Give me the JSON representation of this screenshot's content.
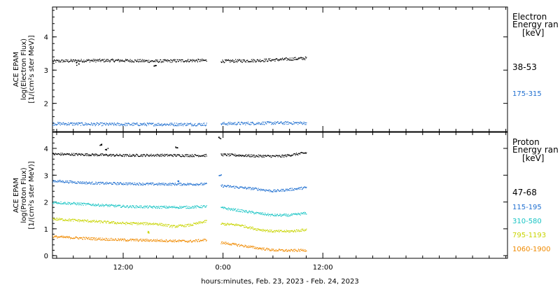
{
  "colors": {
    "background": "#ffffff",
    "axis": "#000000",
    "black": "#000000",
    "blue": "#1f6fd0",
    "cyan": "#17c4c4",
    "yellow": "#c8d400",
    "orange": "#f08a00"
  },
  "xlabel": "hours:minutes, Feb. 23, 2023 - Feb. 24, 2023",
  "chart_data": [
    {
      "type": "scatter",
      "panel": "electron",
      "ylabel_lines": [
        "ACE EPAM",
        "log(Electron Flux)",
        "[1/(cm²s ster MeV)]"
      ],
      "ylim": [
        1.15,
        4.9
      ],
      "xlim_hours": [
        3.5,
        58.2
      ],
      "yticks": [
        {
          "value": 2,
          "label": "2"
        },
        {
          "value": 3,
          "label": "3"
        },
        {
          "value": 4,
          "label": "4"
        }
      ],
      "xticks": [
        {
          "value": 12,
          "label": "12:00"
        },
        {
          "value": 24,
          "label": "0:00"
        },
        {
          "value": 36,
          "label": "12:00"
        }
      ],
      "data_gap_hours": [
        22.0,
        23.7
      ],
      "data_end_hours": 34.0,
      "legend_title_lines": [
        "Electron",
        "Energy ran"
      ],
      "legend_unit": "[keV]",
      "series": [
        {
          "name": "38-53",
          "color": "#000000",
          "points": [
            [
              3.5,
              3.28
            ],
            [
              8,
              3.3
            ],
            [
              12,
              3.3
            ],
            [
              16,
              3.28
            ],
            [
              20,
              3.3
            ],
            [
              22,
              3.3
            ],
            [
              24,
              3.28
            ],
            [
              28,
              3.3
            ],
            [
              31,
              3.33
            ],
            [
              34,
              3.37
            ]
          ],
          "spikes": [
            [
              6.5,
              3.2
            ],
            [
              15.8,
              3.15
            ]
          ]
        },
        {
          "name": "175-315",
          "color": "#1f6fd0",
          "points": [
            [
              3.5,
              1.4
            ],
            [
              10,
              1.38
            ],
            [
              16,
              1.38
            ],
            [
              22,
              1.38
            ],
            [
              24,
              1.4
            ],
            [
              30,
              1.42
            ],
            [
              34,
              1.42
            ]
          ],
          "spikes": []
        }
      ]
    },
    {
      "type": "scatter",
      "panel": "proton",
      "ylabel_lines": [
        "ACE EPAM",
        "log(Proton Flux)",
        "[1/(cm²s ster MeV)]"
      ],
      "ylim": [
        -0.1,
        4.6
      ],
      "xlim_hours": [
        3.5,
        58.2
      ],
      "yticks": [
        {
          "value": 0,
          "label": "0"
        },
        {
          "value": 1,
          "label": "1"
        },
        {
          "value": 2,
          "label": "2"
        },
        {
          "value": 3,
          "label": "3"
        },
        {
          "value": 4,
          "label": "4"
        }
      ],
      "xticks": [
        {
          "value": 12,
          "label": "12:00"
        },
        {
          "value": 24,
          "label": "0:00"
        },
        {
          "value": 36,
          "label": "12:00"
        }
      ],
      "data_gap_hours": [
        22.0,
        23.7
      ],
      "data_end_hours": 34.0,
      "legend_title_lines": [
        "Proton",
        "Energy ran"
      ],
      "legend_unit": "[keV]",
      "series": [
        {
          "name": "47-68",
          "color": "#000000",
          "points": [
            [
              3.5,
              3.8
            ],
            [
              8,
              3.78
            ],
            [
              12,
              3.75
            ],
            [
              16,
              3.76
            ],
            [
              20,
              3.75
            ],
            [
              22,
              3.75
            ],
            [
              23.7,
              3.78
            ],
            [
              28,
              3.73
            ],
            [
              31,
              3.72
            ],
            [
              34,
              3.85
            ]
          ],
          "spikes": [
            [
              9.2,
              4.15
            ],
            [
              10.0,
              4.0
            ],
            [
              18.4,
              4.05
            ],
            [
              23.5,
              4.4
            ]
          ]
        },
        {
          "name": "115-195",
          "color": "#1f6fd0",
          "points": [
            [
              3.5,
              2.8
            ],
            [
              8,
              2.72
            ],
            [
              12,
              2.7
            ],
            [
              16,
              2.68
            ],
            [
              20,
              2.68
            ],
            [
              22,
              2.68
            ],
            [
              23.7,
              2.62
            ],
            [
              28,
              2.5
            ],
            [
              30,
              2.42
            ],
            [
              32,
              2.48
            ],
            [
              34,
              2.55
            ]
          ],
          "spikes": [
            [
              18.5,
              2.8
            ],
            [
              23.6,
              3.0
            ]
          ]
        },
        {
          "name": "310-580",
          "color": "#17c4c4",
          "points": [
            [
              3.5,
              2.0
            ],
            [
              8,
              1.92
            ],
            [
              12,
              1.85
            ],
            [
              16,
              1.82
            ],
            [
              20,
              1.82
            ],
            [
              22,
              1.85
            ],
            [
              23.7,
              1.8
            ],
            [
              28,
              1.6
            ],
            [
              30,
              1.52
            ],
            [
              32,
              1.52
            ],
            [
              34,
              1.6
            ]
          ],
          "spikes": []
        },
        {
          "name": "795-1193",
          "color": "#c8d400",
          "points": [
            [
              3.5,
              1.38
            ],
            [
              8,
              1.3
            ],
            [
              12,
              1.22
            ],
            [
              16,
              1.2
            ],
            [
              18,
              1.1
            ],
            [
              20,
              1.15
            ],
            [
              22,
              1.3
            ],
            [
              23.7,
              1.2
            ],
            [
              26,
              1.15
            ],
            [
              28,
              1.0
            ],
            [
              30,
              0.92
            ],
            [
              32,
              0.92
            ],
            [
              34,
              0.98
            ]
          ],
          "spikes": [
            [
              15.0,
              0.9
            ]
          ]
        },
        {
          "name": "1060-1900",
          "color": "#f08a00",
          "points": [
            [
              3.5,
              0.72
            ],
            [
              8,
              0.65
            ],
            [
              12,
              0.6
            ],
            [
              16,
              0.58
            ],
            [
              20,
              0.55
            ],
            [
              22,
              0.6
            ],
            [
              23.7,
              0.5
            ],
            [
              26,
              0.4
            ],
            [
              28,
              0.3
            ],
            [
              30,
              0.22
            ],
            [
              32,
              0.2
            ],
            [
              34,
              0.22
            ]
          ],
          "spikes": []
        }
      ]
    }
  ]
}
